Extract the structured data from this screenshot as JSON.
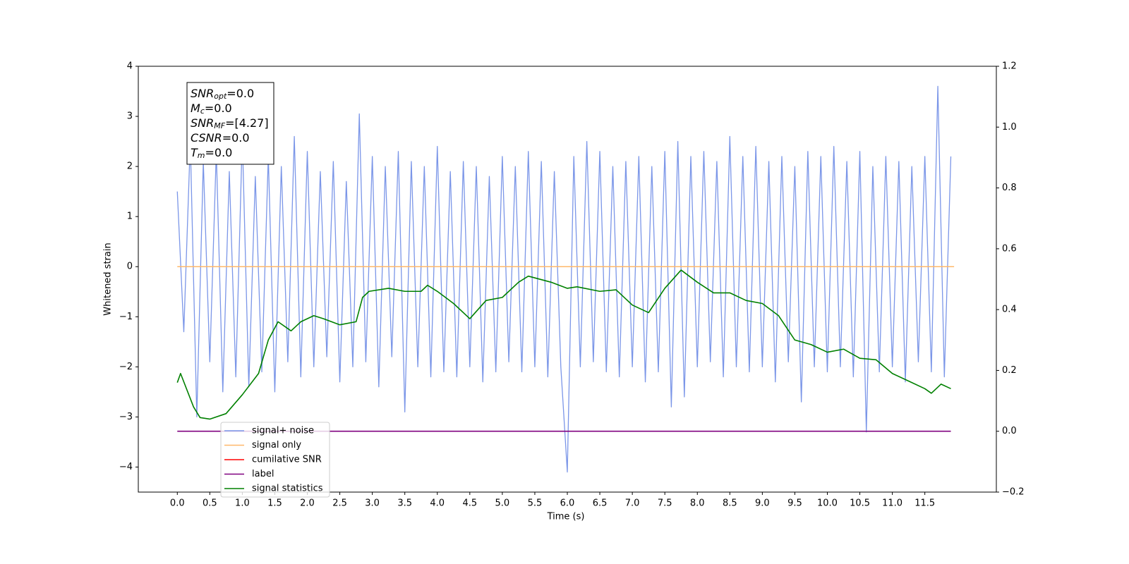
{
  "chart_data": {
    "type": "line",
    "xlabel": "Time (s)",
    "ylabel": "Whitened strain",
    "xlim": [
      -0.6,
      12.6
    ],
    "ylim": [
      -4.5,
      4
    ],
    "y2lim": [
      -0.2,
      1.2
    ],
    "xticks": [
      {
        "value": 0,
        "label": "0.0"
      },
      {
        "value": 0.5,
        "label": "0.5"
      },
      {
        "value": 1,
        "label": "1.0"
      },
      {
        "value": 1.5,
        "label": "1.5"
      },
      {
        "value": 2,
        "label": "2.0"
      },
      {
        "value": 2.5,
        "label": "2.5"
      },
      {
        "value": 3,
        "label": "3.0"
      },
      {
        "value": 3.5,
        "label": "3.5"
      },
      {
        "value": 4,
        "label": "4.0"
      },
      {
        "value": 4.5,
        "label": "4.5"
      },
      {
        "value": 5,
        "label": "5.0"
      },
      {
        "value": 5.5,
        "label": "5.5"
      },
      {
        "value": 6,
        "label": "6.0"
      },
      {
        "value": 6.5,
        "label": "6.5"
      },
      {
        "value": 7,
        "label": "7.0"
      },
      {
        "value": 7.5,
        "label": "7.5"
      },
      {
        "value": 8,
        "label": "8.0"
      },
      {
        "value": 8.5,
        "label": "8.5"
      },
      {
        "value": 9,
        "label": "9.0"
      },
      {
        "value": 9.5,
        "label": "9.5"
      },
      {
        "value": 10,
        "label": "10.0"
      },
      {
        "value": 10.5,
        "label": "10.5"
      },
      {
        "value": 11,
        "label": "11.0"
      },
      {
        "value": 11.5,
        "label": "11.5"
      }
    ],
    "yticks": [
      4,
      3,
      2,
      1,
      0,
      {
        "value": -1,
        "label": "−1"
      },
      {
        "value": -2,
        "label": "−2"
      },
      {
        "value": -3,
        "label": "−3"
      },
      {
        "value": -4,
        "label": "−4"
      }
    ],
    "y2ticks": [
      {
        "value": 1.2,
        "label": "1.2"
      },
      {
        "value": 1.0,
        "label": "1.0"
      },
      {
        "value": 0.8,
        "label": "0.8"
      },
      {
        "value": 0.6,
        "label": "0.6"
      },
      {
        "value": 0.4,
        "label": "0.4"
      },
      {
        "value": 0.2,
        "label": "0.2"
      },
      {
        "value": 0.0,
        "label": "0.0"
      },
      {
        "value": -0.2,
        "label": "−0.2"
      }
    ],
    "legend": "lower left",
    "annotations": [
      {
        "base": "SNR",
        "sub": "opt",
        "rest": "=0.0"
      },
      {
        "base": "M",
        "sub": "c",
        "rest": "=0.0"
      },
      {
        "base": "SNR",
        "sub": "MF",
        "rest": "=[4.27]"
      },
      {
        "base": "CSNR",
        "rest": "=0.0"
      },
      {
        "base": "T",
        "sub": "m",
        "rest": "=0.0"
      }
    ],
    "series": [
      {
        "name": "signal+ noise",
        "color": "#7b96e8",
        "axis": "y",
        "x": [
          0.0,
          0.1,
          0.2,
          0.3,
          0.4,
          0.5,
          0.6,
          0.7,
          0.8,
          0.9,
          1.0,
          1.1,
          1.2,
          1.3,
          1.4,
          1.5,
          1.6,
          1.7,
          1.8,
          1.9,
          2.0,
          2.1,
          2.2,
          2.3,
          2.4,
          2.5,
          2.6,
          2.7,
          2.8,
          2.9,
          3.0,
          3.1,
          3.2,
          3.3,
          3.4,
          3.5,
          3.6,
          3.7,
          3.8,
          3.9,
          4.0,
          4.1,
          4.2,
          4.3,
          4.4,
          4.5,
          4.6,
          4.7,
          4.8,
          4.9,
          5.0,
          5.1,
          5.2,
          5.3,
          5.4,
          5.5,
          5.6,
          5.7,
          5.8,
          5.9,
          6.0,
          6.1,
          6.2,
          6.3,
          6.4,
          6.5,
          6.6,
          6.7,
          6.8,
          6.9,
          7.0,
          7.1,
          7.2,
          7.3,
          7.4,
          7.5,
          7.6,
          7.7,
          7.8,
          7.9,
          8.0,
          8.1,
          8.2,
          8.3,
          8.4,
          8.5,
          8.6,
          8.7,
          8.8,
          8.9,
          9.0,
          9.1,
          9.2,
          9.3,
          9.4,
          9.5,
          9.6,
          9.7,
          9.8,
          9.9,
          10.0,
          10.1,
          10.2,
          10.3,
          10.4,
          10.5,
          10.6,
          10.7,
          10.8,
          10.9,
          11.0,
          11.1,
          11.2,
          11.3,
          11.4,
          11.5,
          11.6,
          11.7,
          11.8,
          11.9
        ],
        "values": [
          1.5,
          -1.3,
          2.5,
          -3.0,
          2.1,
          -1.9,
          2.3,
          -2.5,
          1.9,
          -2.2,
          2.6,
          -2.4,
          1.8,
          -2.1,
          2.2,
          -2.5,
          2.0,
          -1.9,
          2.6,
          -2.2,
          2.3,
          -2.0,
          1.9,
          -1.8,
          2.1,
          -2.3,
          1.7,
          -2.0,
          3.05,
          -1.9,
          2.2,
          -2.4,
          2.0,
          -1.8,
          2.3,
          -2.9,
          2.1,
          -2.0,
          2.0,
          -2.2,
          2.4,
          -2.1,
          1.9,
          -2.2,
          2.1,
          -2.0,
          2.0,
          -2.3,
          1.8,
          -2.1,
          2.2,
          -1.9,
          2.0,
          -2.1,
          2.3,
          -2.0,
          2.1,
          -2.2,
          1.9,
          -2.0,
          -4.1,
          2.2,
          -2.0,
          2.5,
          -1.9,
          2.3,
          -2.1,
          2.0,
          -2.2,
          2.1,
          -2.0,
          2.2,
          -2.3,
          2.0,
          -2.1,
          2.3,
          -2.8,
          2.5,
          -2.6,
          2.2,
          -2.0,
          2.3,
          -1.9,
          2.1,
          -2.2,
          2.6,
          -2.0,
          2.2,
          -2.1,
          2.4,
          -2.0,
          2.1,
          -2.3,
          2.2,
          -1.9,
          2.0,
          -2.7,
          2.3,
          -2.0,
          2.2,
          -2.1,
          2.4,
          -2.0,
          2.1,
          -2.2,
          2.3,
          -3.3,
          2.0,
          -2.1,
          2.2,
          -2.0,
          2.1,
          -2.3,
          2.0,
          -1.9,
          2.2,
          -2.1,
          3.6,
          -2.2,
          2.2
        ]
      },
      {
        "name": "signal only",
        "color": "#ffb86a",
        "axis": "y",
        "x": [
          0.0,
          11.95
        ],
        "values": [
          0,
          0
        ]
      },
      {
        "name": "cumilative SNR",
        "color": "#ff0000",
        "axis": "y2",
        "x": [],
        "values": []
      },
      {
        "name": "label",
        "color": "#800080",
        "axis": "y2",
        "x": [
          0.0,
          11.9
        ],
        "values": [
          0,
          0
        ]
      },
      {
        "name": "signal statistics",
        "color": "#008000",
        "axis": "y2",
        "x": [
          0.0,
          0.05,
          0.25,
          0.35,
          0.5,
          0.75,
          1.0,
          1.25,
          1.4,
          1.55,
          1.75,
          1.9,
          2.1,
          2.25,
          2.5,
          2.75,
          2.85,
          2.95,
          3.25,
          3.5,
          3.75,
          3.85,
          4.0,
          4.25,
          4.5,
          4.75,
          5.0,
          5.25,
          5.4,
          5.75,
          6.0,
          6.15,
          6.5,
          6.75,
          7.0,
          7.25,
          7.5,
          7.75,
          8.0,
          8.25,
          8.5,
          8.75,
          9.0,
          9.25,
          9.5,
          9.75,
          10.0,
          10.25,
          10.5,
          10.75,
          11.0,
          11.25,
          11.5,
          11.6,
          11.75,
          11.9
        ],
        "values": [
          0.16,
          0.19,
          0.08,
          0.045,
          0.04,
          0.058,
          0.12,
          0.19,
          0.3,
          0.36,
          0.33,
          0.36,
          0.38,
          0.37,
          0.35,
          0.36,
          0.44,
          0.46,
          0.47,
          0.46,
          0.46,
          0.48,
          0.46,
          0.42,
          0.37,
          0.43,
          0.44,
          0.49,
          0.51,
          0.49,
          0.47,
          0.475,
          0.46,
          0.465,
          0.415,
          0.39,
          0.47,
          0.53,
          0.49,
          0.455,
          0.455,
          0.43,
          0.42,
          0.38,
          0.3,
          0.285,
          0.26,
          0.27,
          0.24,
          0.235,
          0.19,
          0.165,
          0.14,
          0.125,
          0.155,
          0.14
        ]
      }
    ]
  }
}
